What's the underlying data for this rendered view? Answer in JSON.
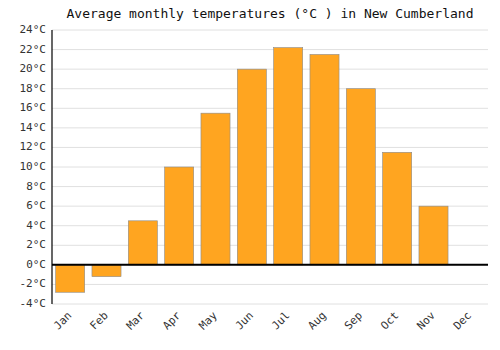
{
  "chart_data": {
    "type": "bar",
    "title": "Average monthly temperatures (°C ) in New Cumberland",
    "categories": [
      "Jan",
      "Feb",
      "Mar",
      "Apr",
      "May",
      "Jun",
      "Jul",
      "Aug",
      "Sep",
      "Oct",
      "Nov",
      "Dec"
    ],
    "values": [
      -2.8,
      -1.2,
      4.5,
      10.0,
      15.5,
      20.0,
      22.2,
      21.5,
      18.0,
      11.5,
      6.0,
      0.0
    ],
    "color": "#FFA520",
    "ylim": [
      -4,
      24
    ],
    "yticks": [
      {
        "value": -4,
        "label": "-4°C"
      },
      {
        "value": -2,
        "label": "-2°C"
      },
      {
        "value": 0,
        "label": "0°C"
      },
      {
        "value": 2,
        "label": "2°C"
      },
      {
        "value": 4,
        "label": "4°C"
      },
      {
        "value": 6,
        "label": "6°C"
      },
      {
        "value": 8,
        "label": "8°C"
      },
      {
        "value": 10,
        "label": "10°C"
      },
      {
        "value": 12,
        "label": "12°C"
      },
      {
        "value": 14,
        "label": "14°C"
      },
      {
        "value": 16,
        "label": "16°C"
      },
      {
        "value": 18,
        "label": "18°C"
      },
      {
        "value": 20,
        "label": "20°C"
      },
      {
        "value": 22,
        "label": "22°C"
      },
      {
        "value": 24,
        "label": "24°C"
      }
    ],
    "grid": true
  }
}
